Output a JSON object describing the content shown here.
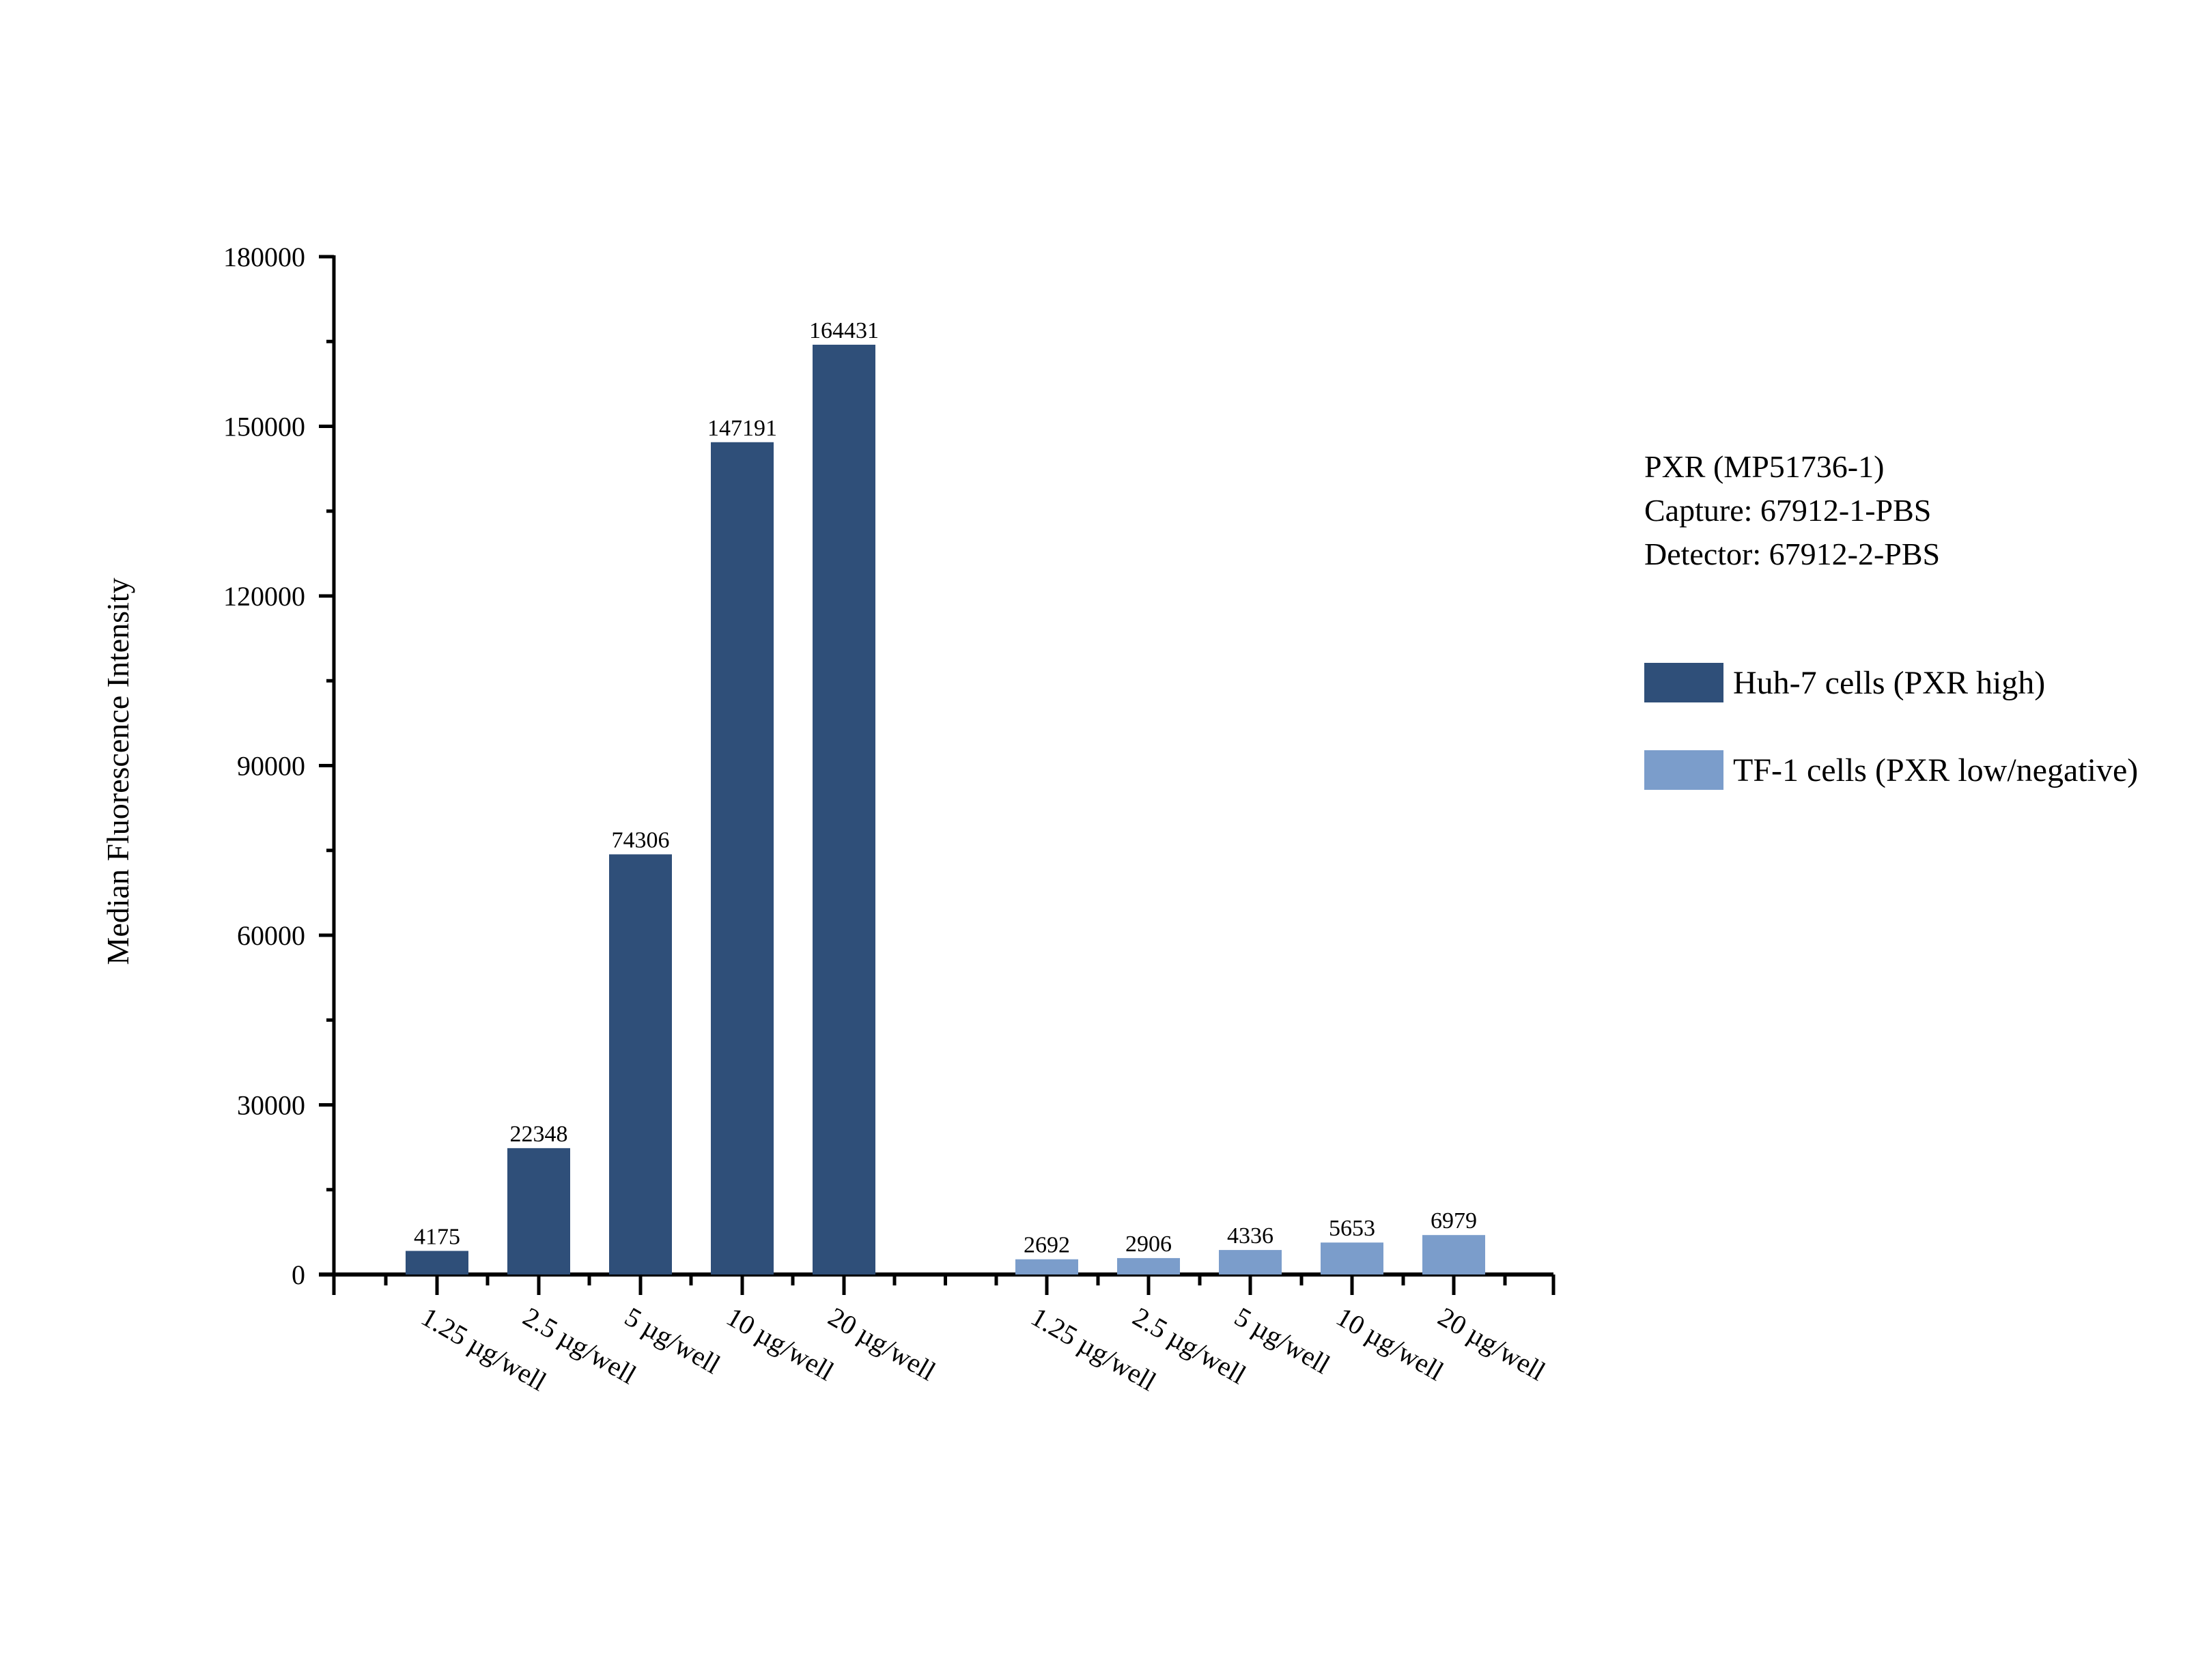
{
  "chart_data": {
    "type": "bar",
    "title": "",
    "xlabel": "",
    "ylabel": "Median Fluorescence Intensity",
    "ylim": [
      0,
      180000
    ],
    "yticks": [
      0,
      30000,
      60000,
      90000,
      120000,
      150000,
      180000
    ],
    "grid": false,
    "legend_position": "right",
    "annotation": [
      "PXR (MP51736-1)",
      "Capture: 67912-1-PBS",
      "Detector: 67912-2-PBS"
    ],
    "categories": [
      "1.25 µg/well",
      "2.5 µg/well",
      "5 µg/well",
      "10 µg/well",
      "20 µg/well"
    ],
    "series": [
      {
        "name": "Huh-7 cells (PXR high)",
        "color": "#2f4f79",
        "values": [
          4175,
          22348,
          74306,
          147191,
          164431
        ]
      },
      {
        "name": "TF-1 cells (PXR low/negative)",
        "color": "#7b9dcb",
        "values": [
          2692,
          2906,
          4336,
          5653,
          6979
        ]
      }
    ]
  },
  "legend": {
    "title_lines": [
      "PXR (MP51736-1)",
      "Capture: 67912-1-PBS",
      "Detector: 67912-2-PBS"
    ],
    "items": [
      {
        "label": "Huh-7 cells (PXR high)",
        "color": "#2f4f79"
      },
      {
        "label": "TF-1 cells (PXR low/negative)",
        "color": "#7b9dcb"
      }
    ]
  }
}
